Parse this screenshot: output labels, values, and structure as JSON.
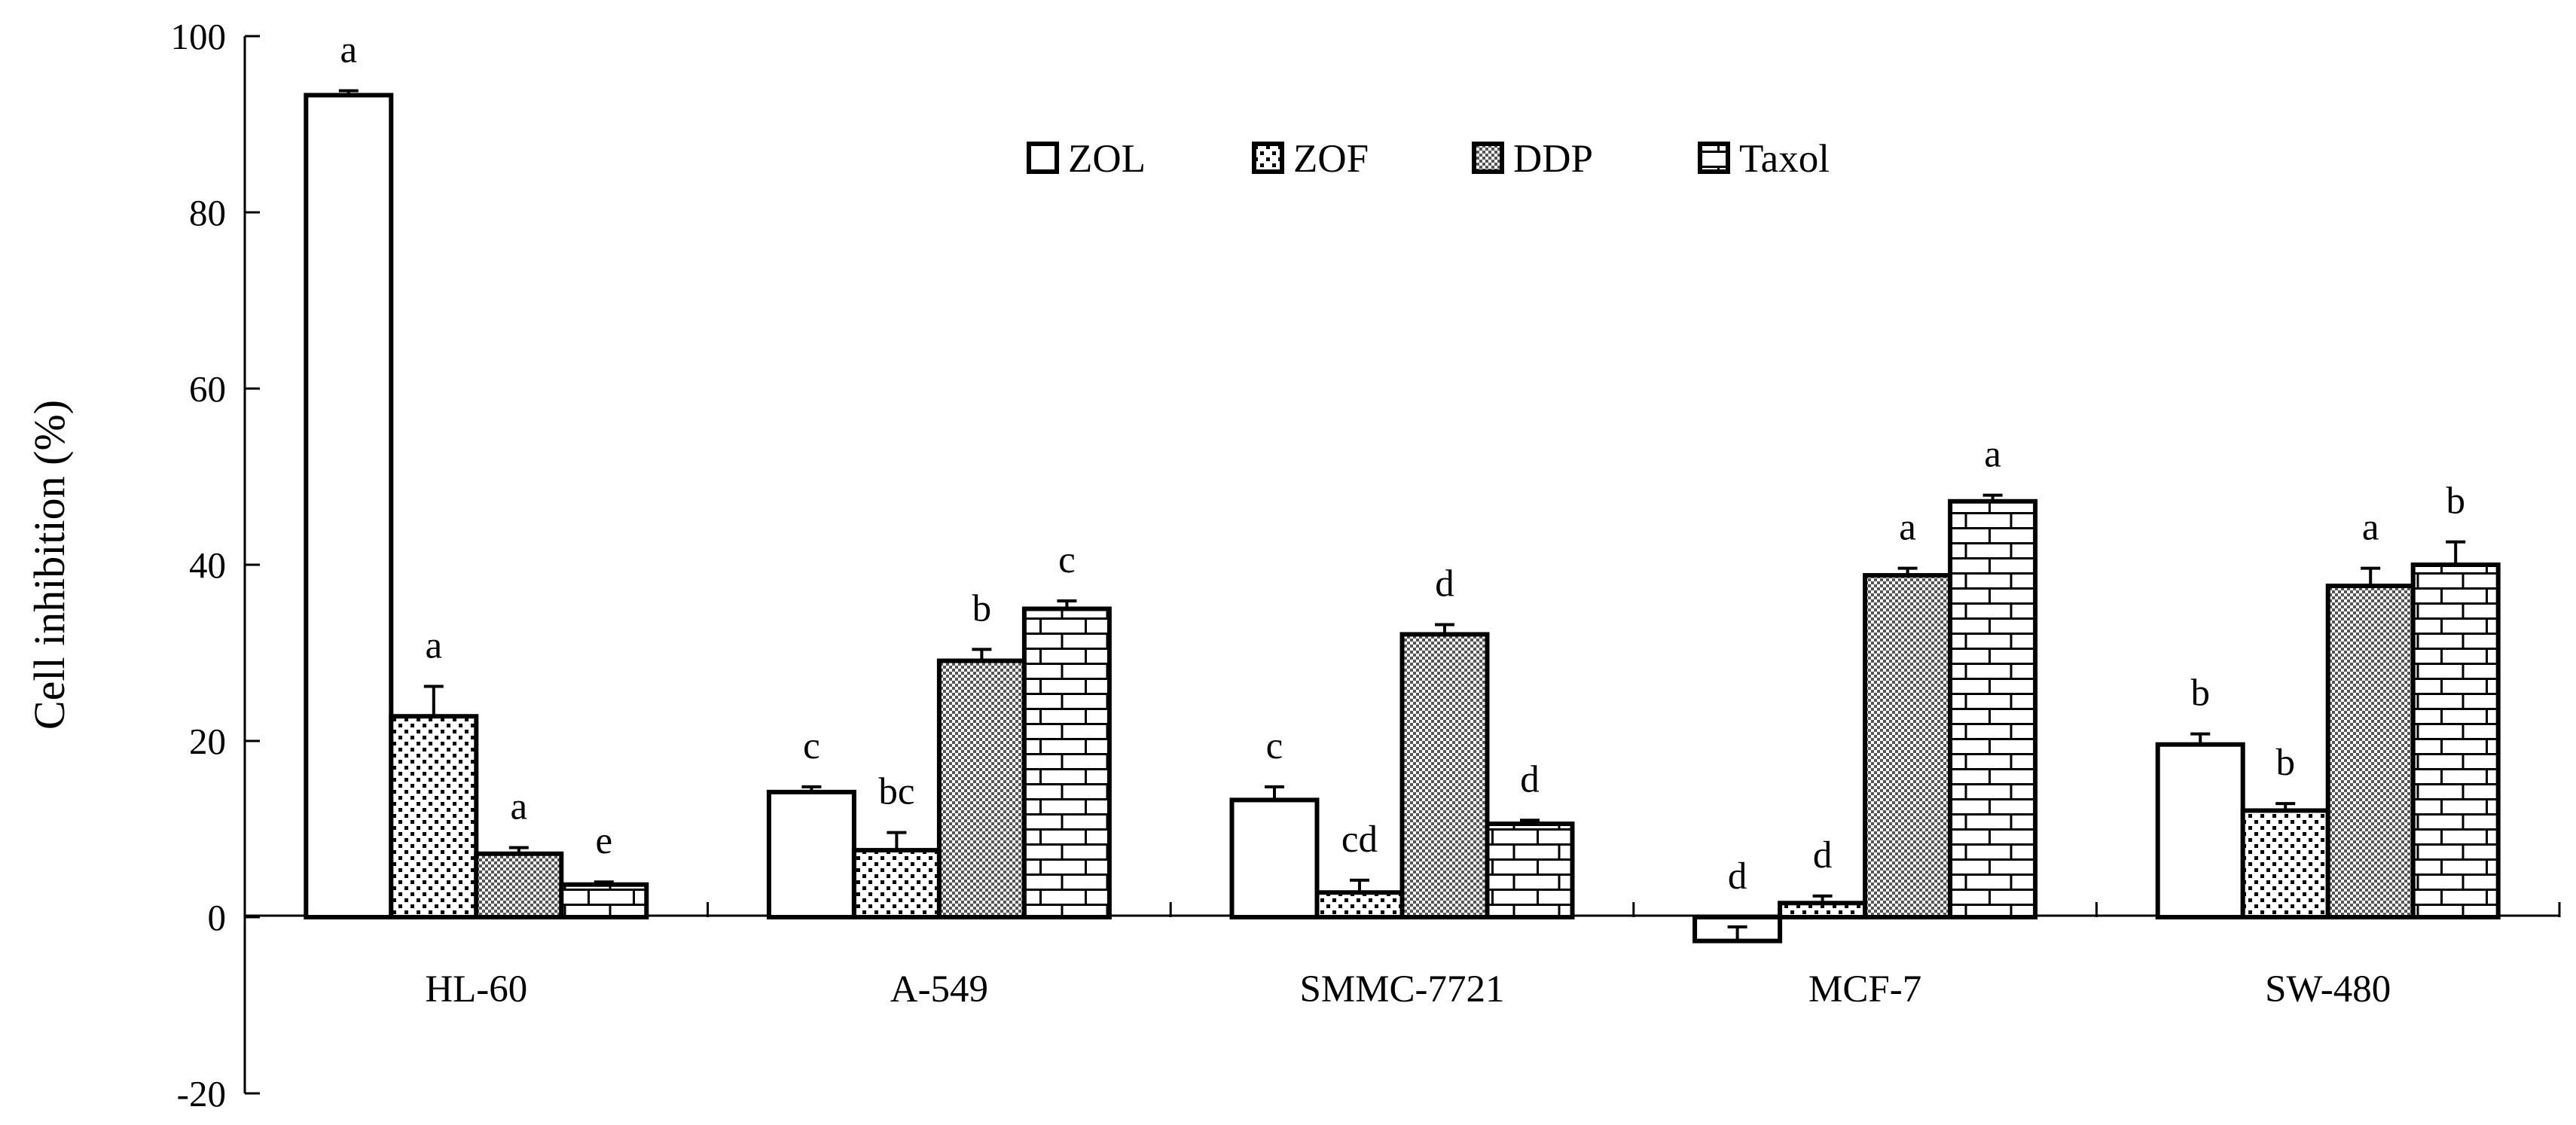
{
  "chart_data": {
    "type": "bar",
    "title": "",
    "xlabel": "",
    "ylabel": "Cell inhibition (%)",
    "ylim": [
      -20,
      100
    ],
    "yticks": [
      "100",
      "80",
      "60",
      "40",
      "20",
      "0",
      "-20"
    ],
    "ytick_values": [
      100,
      80,
      60,
      40,
      20,
      0,
      -20
    ],
    "grid": false,
    "legend_position": "top-center",
    "categories": [
      "HL-60",
      "A-549",
      "SMMC-7721",
      "MCF-7",
      "SW-480"
    ],
    "series": [
      {
        "name": "ZOL",
        "pattern": "none",
        "values": [
          93.3,
          14.2,
          13.3,
          -2.7,
          19.6
        ],
        "errors": [
          0.5,
          0.6,
          1.5,
          1.6,
          1.2
        ],
        "labels": [
          "a",
          "c",
          "c",
          "d",
          "b"
        ]
      },
      {
        "name": "ZOF",
        "pattern": "dots",
        "values": [
          22.8,
          7.6,
          2.8,
          1.6,
          12.1
        ],
        "errors": [
          3.4,
          2.0,
          1.4,
          0.8,
          0.8
        ],
        "labels": [
          "a",
          "bc",
          "cd",
          "d",
          "b"
        ]
      },
      {
        "name": "DDP",
        "pattern": "checker",
        "values": [
          7.2,
          29.1,
          32.1,
          38.8,
          37.6
        ],
        "errors": [
          0.7,
          1.3,
          1.1,
          0.8,
          2.0
        ],
        "labels": [
          "a",
          "b",
          "d",
          "a",
          "a"
        ]
      },
      {
        "name": "Taxol",
        "pattern": "brick",
        "values": [
          3.7,
          35.0,
          10.6,
          47.2,
          40.0
        ],
        "errors": [
          0.3,
          0.9,
          0.4,
          0.7,
          2.6
        ],
        "labels": [
          "e",
          "c",
          "d",
          "a",
          "b"
        ]
      }
    ]
  }
}
